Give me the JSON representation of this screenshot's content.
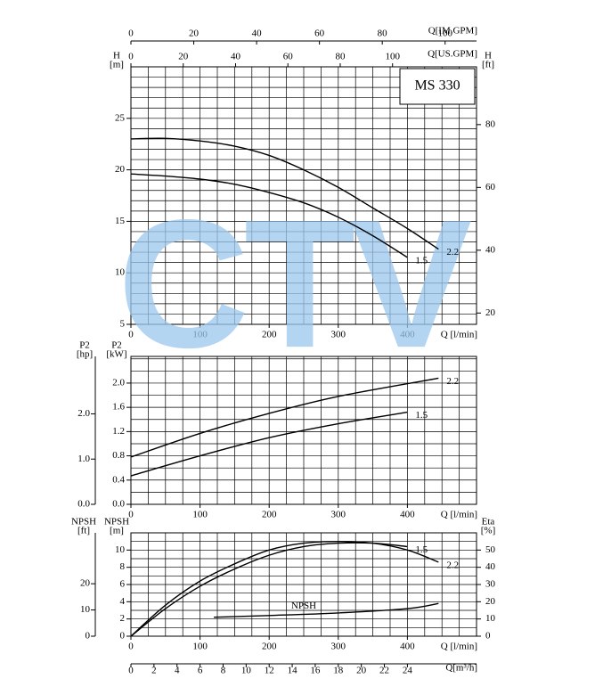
{
  "watermark": "CTV",
  "chart_data": [
    {
      "type": "line",
      "title": "MS 330",
      "xlabel": "Q [l/min]",
      "xlim": [
        0,
        500
      ],
      "xticks": [
        0,
        100,
        200,
        300,
        400
      ],
      "x2label": "Q[IM.GPM]",
      "x2lim": [
        0,
        110
      ],
      "x2ticks": [
        0,
        20,
        40,
        60,
        80,
        100
      ],
      "x3label": "Q[US.GPM]",
      "x3lim": [
        0,
        132.1
      ],
      "x3ticks": [
        0,
        20,
        40,
        60,
        80,
        100
      ],
      "ylabel": "H",
      "yunit": "[m]",
      "ylim": [
        5,
        30
      ],
      "yticks": [
        5,
        10,
        15,
        20,
        25
      ],
      "y2label": "H",
      "y2unit": "[ft]",
      "y2lim": [
        16.4,
        98.4
      ],
      "y2ticks": [
        20,
        40,
        60,
        80
      ],
      "grid": true,
      "grid_step_x": 25,
      "grid_step_y": 1,
      "series": [
        {
          "name": "2.2",
          "color": "#000000",
          "x": [
            0,
            50,
            100,
            150,
            200,
            250,
            300,
            350,
            400,
            445
          ],
          "values": [
            23,
            23.05,
            22.8,
            22.3,
            21.4,
            20,
            18.3,
            16.3,
            14.3,
            12.3
          ]
        },
        {
          "name": "1.5",
          "color": "#000000",
          "x": [
            0,
            50,
            100,
            150,
            200,
            250,
            300,
            350,
            400
          ],
          "values": [
            19.6,
            19.4,
            19.1,
            18.6,
            17.8,
            16.8,
            15.4,
            13.6,
            11.5
          ]
        }
      ]
    },
    {
      "type": "line",
      "xlabel": "Q [l/min]",
      "xlim": [
        0,
        500
      ],
      "xticks": [
        0,
        100,
        200,
        300,
        400
      ],
      "ylabel": "P2",
      "yunit": "[kW]",
      "ylim": [
        0,
        2.44
      ],
      "yticks": [
        {
          "value": 0,
          "label": "0.0"
        },
        0.4,
        0.8,
        1.2,
        1.6,
        {
          "value": 2,
          "label": "2.0"
        }
      ],
      "y2label": "P2",
      "y2unit": "[hp]",
      "y2lim": [
        0,
        3.27
      ],
      "y2ticks": [
        {
          "value": 0,
          "label": "0.0"
        },
        {
          "value": 1,
          "label": "1.0"
        },
        {
          "value": 2,
          "label": "2.0"
        }
      ],
      "grid": true,
      "grid_step_x": 25,
      "grid_step_y": 0.2,
      "series": [
        {
          "name": "2.2",
          "color": "#000000",
          "x": [
            0,
            100,
            200,
            300,
            445
          ],
          "values": [
            0.78,
            1.17,
            1.5,
            1.78,
            2.08
          ]
        },
        {
          "name": "1.5",
          "color": "#000000",
          "x": [
            0,
            100,
            200,
            300,
            400
          ],
          "values": [
            0.47,
            0.8,
            1.1,
            1.33,
            1.52
          ]
        }
      ]
    },
    {
      "type": "line",
      "xlabel": "Q [l/min]",
      "xlim": [
        0,
        500
      ],
      "xticks": [
        0,
        100,
        200,
        300,
        400
      ],
      "x2label": "Q[m³/h]",
      "x2lim": [
        0,
        30
      ],
      "x2ticks": [
        0,
        2,
        4,
        6,
        8,
        10,
        12,
        14,
        16,
        18,
        20,
        22,
        24
      ],
      "ylabel": "NPSH",
      "yunit": "[m]",
      "ylim": [
        0,
        12
      ],
      "yticks": [
        0,
        2,
        4,
        6,
        8,
        10
      ],
      "y3label": "NPSH",
      "y3unit": "[ft]",
      "y3lim": [
        0,
        39.4
      ],
      "y3ticks": [
        0,
        10,
        20
      ],
      "y2label": "Eta",
      "y2unit": "[%]",
      "y2lim": [
        0,
        60
      ],
      "y2ticks": [
        0,
        10,
        20,
        30,
        40,
        50
      ],
      "grid": true,
      "grid_step_x": 25,
      "grid_step_y": 1,
      "series": [
        {
          "name": "NPSH",
          "color": "#000000",
          "axis": "y",
          "x": [
            120,
            200,
            300,
            400,
            445
          ],
          "values": [
            2.2,
            2.4,
            2.7,
            3.2,
            3.8
          ]
        },
        {
          "name": "1.5",
          "color": "#000000",
          "axis": "y2",
          "x": [
            0,
            50,
            100,
            150,
            200,
            250,
            300,
            350,
            400
          ],
          "values": [
            0,
            16,
            29,
            39,
            47,
            52,
            54,
            54,
            52
          ]
        },
        {
          "name": "2.2",
          "color": "#000000",
          "axis": "y2",
          "x": [
            0,
            50,
            100,
            150,
            200,
            250,
            300,
            350,
            400,
            445
          ],
          "values": [
            0,
            18,
            32,
            42,
            50,
            54,
            55,
            54,
            50,
            43
          ]
        }
      ]
    }
  ]
}
